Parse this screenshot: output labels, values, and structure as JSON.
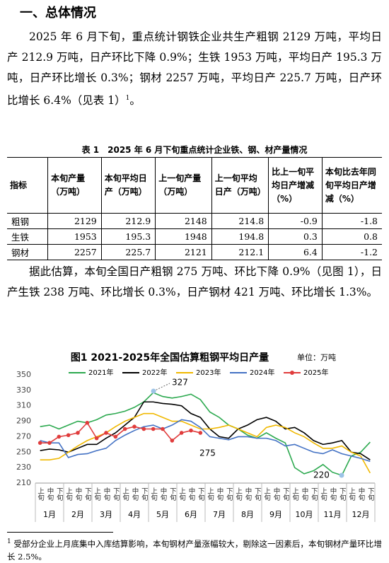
{
  "document": {
    "heading": "一、总体情况",
    "paragraphs": [
      {
        "text": "2025 年 6 月下旬，重点统计钢铁企业共生产粗钢 2129 万吨，平均日产 212.9 万吨，日产环比下降 0.9%；生铁 1953 万吨，平均日产 195.3 万吨，日产环比增长 0.3%；钢材 2257 万吨，平均日产 225.7 万吨，日产环比增长 6.4%（见表 1）",
        "note_ref": "1",
        "tail": "。"
      },
      {
        "text": "据此估算，本旬全国日产粗钢 275 万吨、环比下降 0.9%（见图 1），日产生铁 238 万吨、环比增长 0.3%，日产钢材 421 万吨、环比增长 1.3%。"
      }
    ],
    "table": {
      "caption": "表 1　2025 年 6 月下旬重点统计企业铁、钢、材产量情况",
      "header": [
        "指标",
        "本旬产量（万吨）",
        "本旬平均日产（万吨）",
        "上一旬产量（万吨）",
        "上一旬平均日产（万吨）",
        "比上一旬平均日产增减（%）",
        "本旬比去年同旬平均日产增减（%）"
      ],
      "rows": [
        [
          "粗钢",
          "2129",
          "212.9",
          "2148",
          "214.8",
          "-0.9",
          "-1.8"
        ],
        [
          "生铁",
          "1953",
          "195.3",
          "1948",
          "194.8",
          "0.3",
          "0.8"
        ],
        [
          "钢材",
          "2257",
          "225.7",
          "2121",
          "212.1",
          "6.4",
          "-1.2"
        ]
      ]
    },
    "footnote": {
      "marker": "1",
      "text": "受部分企业上月底集中入库结算影响，本旬钢材产量涨幅较大，剔除这一因素后，本旬钢材产量环比增长 2.5%。"
    }
  },
  "chart_data": {
    "type": "line",
    "title": "图1 2021-2025年全国估算粗钢平均日产量",
    "unit": "单位：万吨",
    "categories": [
      "上旬",
      "中旬",
      "下旬",
      "上旬",
      "中旬",
      "下旬",
      "上旬",
      "中旬",
      "下旬",
      "上旬",
      "中旬",
      "下旬",
      "上旬",
      "中旬",
      "下旬",
      "上旬",
      "中旬",
      "下旬",
      "上旬",
      "中旬",
      "下旬",
      "上旬",
      "中旬",
      "下旬",
      "上旬",
      "中旬",
      "下旬",
      "上旬",
      "中旬",
      "下旬",
      "上旬",
      "中旬",
      "下旬",
      "上旬",
      "中旬",
      "下旬"
    ],
    "category_groups": [
      "1月",
      "2月",
      "3月",
      "4月",
      "5月",
      "6月",
      "7月",
      "8月",
      "9月",
      "10月",
      "11月",
      "12月"
    ],
    "ylim": [
      210,
      350
    ],
    "yticks": [
      210,
      230,
      250,
      270,
      290,
      310,
      330,
      350
    ],
    "grid": false,
    "series": [
      {
        "name": "2021年",
        "color": "#2ca94f",
        "values": [
          283,
          285,
          280,
          285,
          290,
          288,
          292,
          298,
          300,
          303,
          308,
          315,
          327,
          322,
          320,
          322,
          325,
          318,
          302,
          295,
          285,
          280,
          272,
          268,
          275,
          268,
          262,
          230,
          222,
          226,
          234,
          224,
          220,
          245,
          250,
          263
        ]
      },
      {
        "name": "2022年",
        "color": "#000000",
        "values": [
          252,
          254,
          253,
          250,
          255,
          260,
          260,
          268,
          275,
          285,
          295,
          315,
          315,
          313,
          312,
          310,
          300,
          295,
          280,
          270,
          268,
          280,
          285,
          292,
          295,
          290,
          280,
          282,
          275,
          265,
          260,
          262,
          265,
          250,
          248,
          240
        ]
      },
      {
        "name": "2023年",
        "color": "#f0b800",
        "values": [
          240,
          240,
          242,
          250,
          258,
          265,
          270,
          275,
          283,
          290,
          295,
          300,
          300,
          295,
          290,
          290,
          285,
          280,
          280,
          282,
          285,
          280,
          275,
          270,
          282,
          285,
          282,
          275,
          270,
          262,
          255,
          255,
          258,
          250,
          245,
          223
        ]
      },
      {
        "name": "2024年",
        "color": "#4472c4",
        "values": [
          265,
          262,
          262,
          243,
          247,
          248,
          252,
          255,
          265,
          272,
          278,
          283,
          285,
          280,
          285,
          292,
          290,
          282,
          270,
          268,
          266,
          270,
          270,
          268,
          268,
          265,
          258,
          260,
          255,
          250,
          248,
          253,
          248,
          245,
          242,
          238
        ]
      },
      {
        "name": "2025年",
        "color": "#e03c3c",
        "markers": true,
        "values": [
          262,
          262,
          270,
          272,
          275,
          288,
          268,
          275,
          270,
          280,
          283,
          280,
          280,
          280,
          265,
          275,
          278,
          275,
          null,
          null,
          null,
          null,
          null,
          null,
          null,
          null,
          null,
          null,
          null,
          null,
          null,
          null,
          null,
          null,
          null,
          null
        ]
      }
    ],
    "annotations": [
      "327",
      "275",
      "220"
    ]
  }
}
